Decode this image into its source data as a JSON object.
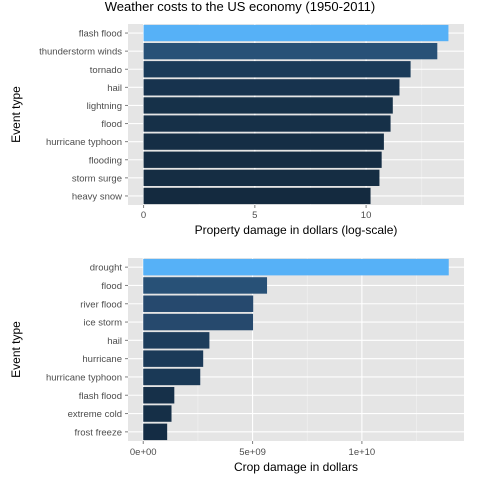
{
  "title": "Weather costs to the US economy (1950-2011)",
  "chart_data": [
    {
      "type": "bar",
      "orientation": "horizontal",
      "xlabel": "Property damage in dollars (log-scale)",
      "ylabel": "Event type",
      "categories": [
        "flash flood",
        "thunderstorm winds",
        "tornado",
        "hail",
        "lightning",
        "flood",
        "hurricane typhoon",
        "flooding",
        "storm surge",
        "heavy snow"
      ],
      "values": [
        13.7,
        13.2,
        12.0,
        11.5,
        11.2,
        11.1,
        10.8,
        10.7,
        10.6,
        10.2
      ],
      "xlim": [
        -0.7,
        14.4
      ],
      "xticks": [
        0,
        5,
        10
      ],
      "xtick_labels": [
        "0",
        "5",
        "10"
      ],
      "grid": true,
      "colors": [
        "#56b1f7",
        "#285177",
        "#1a3b59",
        "#17334e",
        "#163149",
        "#163048",
        "#152e45",
        "#152d44",
        "#152d43",
        "#142a3f"
      ]
    },
    {
      "type": "bar",
      "orientation": "horizontal",
      "xlabel": "Crop damage in dollars",
      "ylabel": "Event type",
      "categories": [
        "drought",
        "flood",
        "river flood",
        "ice storm",
        "hail",
        "hurricane",
        "hurricane typhoon",
        "flash flood",
        "extreme cold",
        "frost freeze"
      ],
      "values": [
        13972566000,
        5661968450,
        5029459000,
        5022113500,
        3025954473,
        2741910000,
        2607872800,
        1421317100,
        1292973000,
        1094086000
      ],
      "xlim": [
        -697000000,
        14670000000
      ],
      "xticks": [
        0,
        5000000000,
        10000000000
      ],
      "xtick_labels": [
        "0e+00",
        "5e+09",
        "1e+10"
      ],
      "grid": true,
      "colors": [
        "#56b1f7",
        "#285177",
        "#26496e",
        "#26496d",
        "#1d3d5c",
        "#1b3a58",
        "#1a3956",
        "#163049",
        "#152f47",
        "#142c44"
      ]
    }
  ]
}
